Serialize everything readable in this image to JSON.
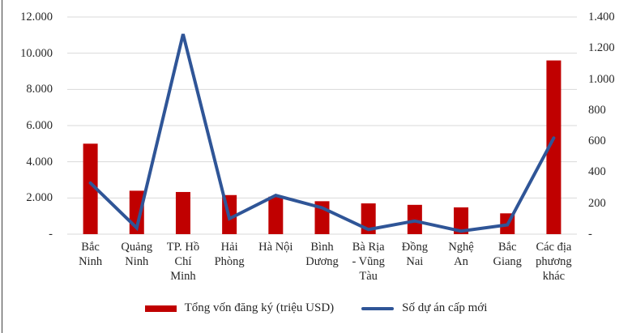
{
  "chart_data": {
    "type": "combo-bar-line",
    "title": "",
    "categories": [
      "Bắc Ninh",
      "Quảng Ninh",
      "TP. Hồ Chí Minh",
      "Hải Phòng",
      "Hà Nội",
      "Bình Dương",
      "Bà Rịa - Vũng Tàu",
      "Đồng Nai",
      "Nghệ An",
      "Bắc Giang",
      "Các địa phương khác"
    ],
    "series": [
      {
        "name": "Tổng vốn đăng ký (triệu USD)",
        "type": "bar",
        "axis": "left",
        "color": "#C00000",
        "values": [
          5000,
          2400,
          2330,
          2160,
          2070,
          1820,
          1700,
          1620,
          1480,
          1150,
          9600
        ]
      },
      {
        "name": "Số dự án cấp mới",
        "type": "line",
        "axis": "right",
        "color": "#2F5597",
        "values": [
          330,
          40,
          1290,
          100,
          250,
          170,
          30,
          85,
          20,
          60,
          620
        ]
      }
    ],
    "left_axis": {
      "min": 0,
      "max": 12000,
      "step": 2000,
      "labels": [
        "-",
        "2.000",
        "4.000",
        "6.000",
        "8.000",
        "10.000",
        "12.000"
      ]
    },
    "right_axis": {
      "min": 0,
      "max": 1400,
      "step": 200,
      "labels": [
        "-",
        "200",
        "400",
        "600",
        "800",
        "1.000",
        "1.200",
        "1.400"
      ]
    },
    "grid": "horizontal-left-axis",
    "legend_position": "bottom"
  },
  "colors": {
    "bar": "#C00000",
    "line": "#2F5597",
    "grid": "#D9D9D9",
    "text": "#262626",
    "edge": "#3F3F3F"
  }
}
